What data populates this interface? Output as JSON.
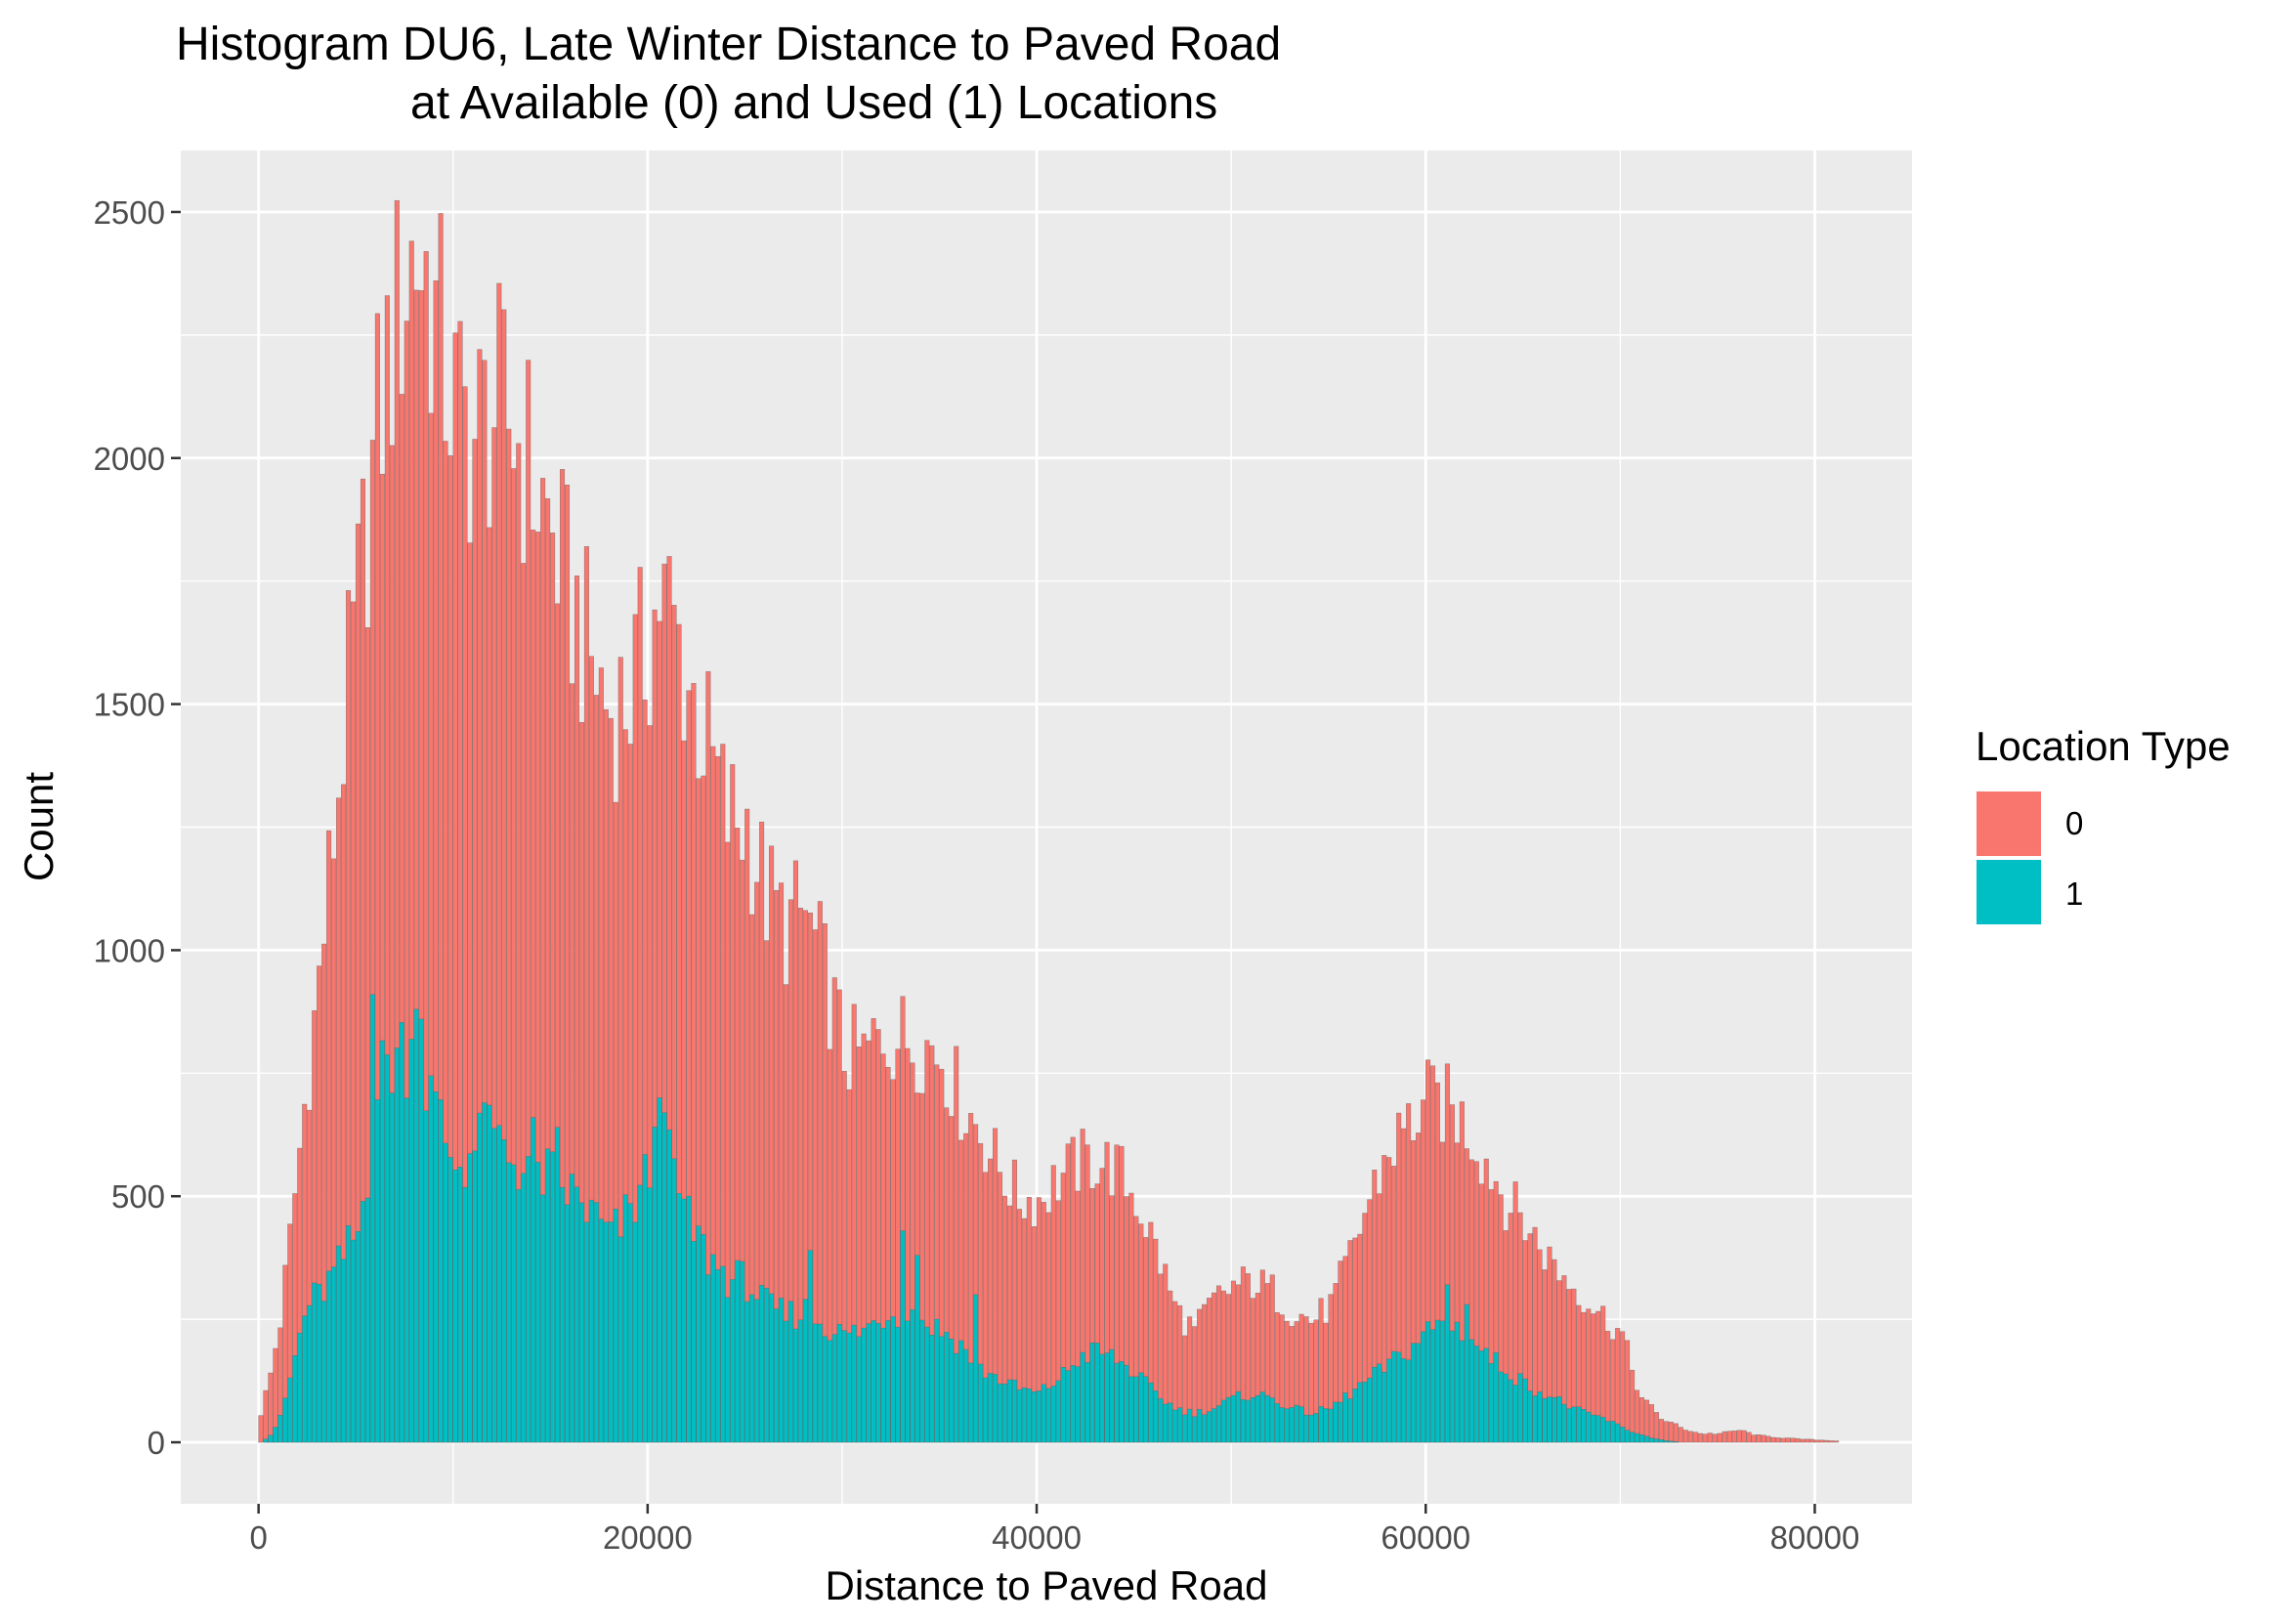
{
  "chart_data": {
    "type": "bar",
    "title_lines": [
      "Histogram DU6, Late Winter Distance to Paved Road",
      "at Available (0) and Used (1) Locations"
    ],
    "xlabel": "Distance to Paved Road",
    "ylabel": "Count",
    "xlim": [
      -4000,
      85000
    ],
    "ylim": [
      -125,
      2625
    ],
    "x_ticks": [
      0,
      20000,
      40000,
      60000,
      80000
    ],
    "x_tick_labels": [
      "0",
      "20000",
      "40000",
      "60000",
      "80000"
    ],
    "y_ticks": [
      0,
      500,
      1000,
      1500,
      2000,
      2500
    ],
    "y_tick_labels": [
      "0",
      "500",
      "1000",
      "1500",
      "2000",
      "2500"
    ],
    "grid": true,
    "legend": {
      "title": "Location Type",
      "placement": "right"
    },
    "bin_width": 250,
    "x_start": 0,
    "series": [
      {
        "name": "0",
        "color": "#F8766D",
        "anchors": [
          [
            0,
            60
          ],
          [
            500,
            140
          ],
          [
            1000,
            250
          ],
          [
            1500,
            420
          ],
          [
            2000,
            600
          ],
          [
            2500,
            780
          ],
          [
            3000,
            950
          ],
          [
            3500,
            1150
          ],
          [
            4000,
            1350
          ],
          [
            4500,
            1550
          ],
          [
            5000,
            1720
          ],
          [
            5500,
            1900
          ],
          [
            6000,
            2080
          ],
          [
            6500,
            2200
          ],
          [
            7000,
            2300
          ],
          [
            7500,
            2400
          ],
          [
            8000,
            2450
          ],
          [
            8500,
            2400
          ],
          [
            9000,
            2300
          ],
          [
            9500,
            2200
          ],
          [
            10000,
            2120
          ],
          [
            11000,
            2060
          ],
          [
            12000,
            2120
          ],
          [
            13000,
            2080
          ],
          [
            14000,
            1980
          ],
          [
            15000,
            1860
          ],
          [
            16000,
            1720
          ],
          [
            17000,
            1600
          ],
          [
            18000,
            1500
          ],
          [
            19000,
            1540
          ],
          [
            20000,
            1650
          ],
          [
            20500,
            1740
          ],
          [
            21000,
            1700
          ],
          [
            22000,
            1560
          ],
          [
            23000,
            1420
          ],
          [
            24000,
            1280
          ],
          [
            25000,
            1270
          ],
          [
            26000,
            1120
          ],
          [
            27000,
            1060
          ],
          [
            28000,
            1080
          ],
          [
            29000,
            960
          ],
          [
            30000,
            800
          ],
          [
            31000,
            790
          ],
          [
            32000,
            840
          ],
          [
            33000,
            830
          ],
          [
            34000,
            820
          ],
          [
            35000,
            800
          ],
          [
            36000,
            700
          ],
          [
            37000,
            640
          ],
          [
            38000,
            560
          ],
          [
            39000,
            500
          ],
          [
            40000,
            500
          ],
          [
            41000,
            540
          ],
          [
            42000,
            570
          ],
          [
            43000,
            580
          ],
          [
            44000,
            560
          ],
          [
            45000,
            500
          ],
          [
            46000,
            400
          ],
          [
            47000,
            280
          ],
          [
            47500,
            250
          ],
          [
            48000,
            230
          ],
          [
            49000,
            290
          ],
          [
            50000,
            320
          ],
          [
            51000,
            330
          ],
          [
            52000,
            310
          ],
          [
            53000,
            270
          ],
          [
            54000,
            250
          ],
          [
            55000,
            280
          ],
          [
            56000,
            380
          ],
          [
            57000,
            500
          ],
          [
            58000,
            600
          ],
          [
            59000,
            650
          ],
          [
            60000,
            700
          ],
          [
            61000,
            690
          ],
          [
            62000,
            650
          ],
          [
            63000,
            580
          ],
          [
            64000,
            500
          ],
          [
            65000,
            450
          ],
          [
            66000,
            390
          ],
          [
            67000,
            340
          ],
          [
            68000,
            300
          ],
          [
            69000,
            260
          ],
          [
            70000,
            220
          ],
          [
            70500,
            150
          ],
          [
            71000,
            90
          ],
          [
            72000,
            50
          ],
          [
            73000,
            30
          ],
          [
            74000,
            18
          ],
          [
            75000,
            18
          ],
          [
            76000,
            25
          ],
          [
            77000,
            14
          ],
          [
            78000,
            10
          ],
          [
            79000,
            7
          ],
          [
            80000,
            5
          ],
          [
            81000,
            3
          ]
        ]
      },
      {
        "name": "1",
        "color": "#00BFC4",
        "anchors": [
          [
            0,
            0
          ],
          [
            500,
            15
          ],
          [
            1000,
            50
          ],
          [
            1500,
            130
          ],
          [
            2000,
            220
          ],
          [
            2500,
            290
          ],
          [
            3000,
            300
          ],
          [
            3500,
            330
          ],
          [
            4000,
            360
          ],
          [
            4500,
            400
          ],
          [
            5000,
            430
          ],
          [
            5500,
            560
          ],
          [
            6000,
            720
          ],
          [
            6500,
            780
          ],
          [
            7000,
            800
          ],
          [
            7500,
            810
          ],
          [
            8000,
            790
          ],
          [
            8500,
            740
          ],
          [
            9000,
            680
          ],
          [
            9500,
            620
          ],
          [
            10000,
            570
          ],
          [
            11000,
            600
          ],
          [
            12000,
            620
          ],
          [
            13000,
            580
          ],
          [
            14000,
            560
          ],
          [
            15000,
            540
          ],
          [
            16000,
            510
          ],
          [
            17000,
            470
          ],
          [
            18000,
            420
          ],
          [
            19000,
            470
          ],
          [
            20000,
            560
          ],
          [
            20500,
            620
          ],
          [
            21000,
            570
          ],
          [
            22000,
            450
          ],
          [
            23000,
            380
          ],
          [
            24000,
            340
          ],
          [
            25000,
            330
          ],
          [
            26000,
            280
          ],
          [
            27000,
            260
          ],
          [
            28000,
            270
          ],
          [
            29000,
            240
          ],
          [
            30000,
            220
          ],
          [
            31000,
            230
          ],
          [
            32000,
            260
          ],
          [
            33000,
            270
          ],
          [
            34000,
            250
          ],
          [
            35000,
            230
          ],
          [
            36000,
            200
          ],
          [
            37000,
            150
          ],
          [
            38000,
            130
          ],
          [
            39000,
            110
          ],
          [
            40000,
            100
          ],
          [
            41000,
            130
          ],
          [
            42000,
            170
          ],
          [
            43000,
            190
          ],
          [
            44000,
            170
          ],
          [
            45000,
            140
          ],
          [
            46000,
            100
          ],
          [
            47000,
            70
          ],
          [
            48000,
            60
          ],
          [
            49000,
            70
          ],
          [
            50000,
            90
          ],
          [
            51000,
            100
          ],
          [
            52000,
            90
          ],
          [
            53000,
            70
          ],
          [
            54000,
            60
          ],
          [
            55000,
            70
          ],
          [
            56000,
            100
          ],
          [
            57000,
            130
          ],
          [
            58000,
            160
          ],
          [
            59000,
            190
          ],
          [
            60000,
            230
          ],
          [
            61000,
            250
          ],
          [
            62000,
            220
          ],
          [
            63000,
            180
          ],
          [
            64000,
            150
          ],
          [
            65000,
            120
          ],
          [
            66000,
            100
          ],
          [
            67000,
            80
          ],
          [
            68000,
            60
          ],
          [
            69000,
            50
          ],
          [
            70000,
            30
          ],
          [
            71000,
            15
          ],
          [
            72000,
            5
          ],
          [
            73000,
            0
          ]
        ],
        "spikes": [
          [
            5750,
            910
          ],
          [
            8000,
            880
          ],
          [
            8250,
            860
          ],
          [
            11500,
            690
          ],
          [
            14000,
            660
          ],
          [
            15250,
            640
          ],
          [
            20500,
            700
          ],
          [
            20750,
            670
          ],
          [
            28250,
            390
          ],
          [
            33000,
            430
          ],
          [
            33750,
            380
          ],
          [
            36750,
            300
          ],
          [
            61000,
            320
          ],
          [
            62000,
            280
          ]
        ]
      }
    ]
  }
}
